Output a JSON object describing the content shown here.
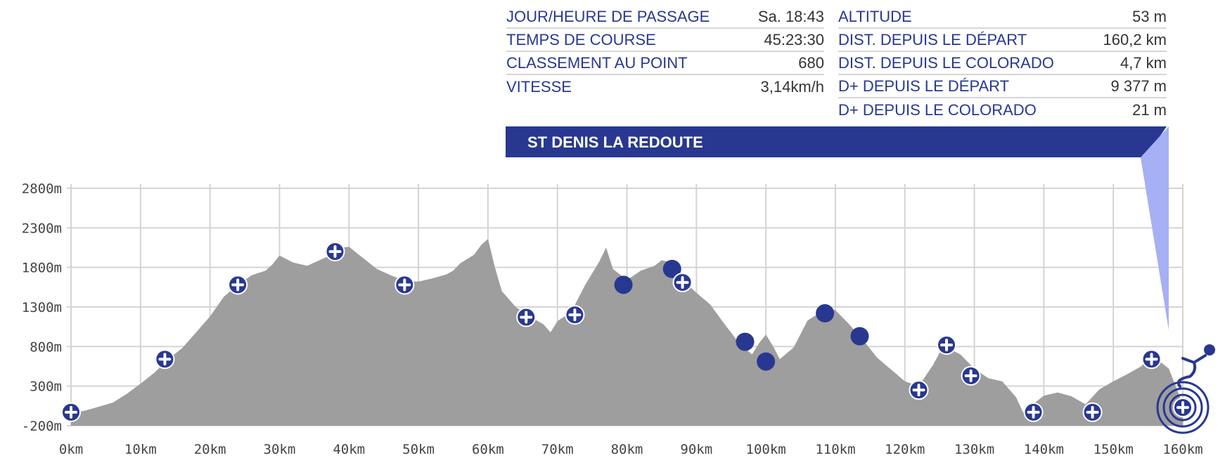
{
  "info": {
    "left": [
      {
        "label": "JOUR/HEURE DE PASSAGE",
        "value": "Sa. 18:43"
      },
      {
        "label": "TEMPS DE COURSE",
        "value": "45:23:30"
      },
      {
        "label": "CLASSEMENT AU POINT",
        "value": "680"
      },
      {
        "label": "VITESSE",
        "value": "3,14km/h"
      }
    ],
    "right": [
      {
        "label": "ALTITUDE",
        "value": "53 m"
      },
      {
        "label": "DIST. DEPUIS LE DÉPART",
        "value": "160,2 km"
      },
      {
        "label": "DIST. DEPUIS LE COLORADO",
        "value": "4,7 km"
      },
      {
        "label": "D+ DEPUIS LE DÉPART",
        "value": "9 377 m"
      },
      {
        "label": "D+ DEPUIS LE COLORADO",
        "value": "21 m"
      }
    ]
  },
  "banner": {
    "label": "ST DENIS LA REDOUTE",
    "color": "#283891",
    "pointer_color": "#a5b0f5"
  },
  "chart_data": {
    "type": "area",
    "title": "",
    "xlabel": "",
    "ylabel": "",
    "xlim": [
      0,
      160
    ],
    "ylim": [
      -200,
      2800
    ],
    "x_ticks": [
      "0km",
      "10km",
      "20km",
      "30km",
      "40km",
      "50km",
      "60km",
      "70km",
      "80km",
      "90km",
      "100km",
      "110km",
      "120km",
      "130km",
      "140km",
      "150km",
      "160km"
    ],
    "y_ticks": [
      "2800m",
      "2300m",
      "1800m",
      "1300m",
      "800m",
      "300m",
      "-200m"
    ],
    "grid": true,
    "fill_color": "#9e9e9e",
    "marker_color": "#283891",
    "series": [
      {
        "x": [
          0,
          2,
          4,
          6,
          8,
          10,
          12,
          14,
          16,
          18,
          20,
          22,
          24,
          26,
          28,
          29,
          30,
          32,
          34,
          35,
          36,
          38,
          39,
          40,
          42,
          44,
          46,
          48,
          50,
          52,
          54,
          55,
          56,
          58,
          59,
          60,
          61,
          62,
          64,
          66,
          68,
          69,
          70,
          72,
          74,
          76,
          77,
          78,
          80,
          82,
          84,
          85,
          86,
          87,
          88,
          90,
          92,
          94,
          96,
          98,
          99,
          100,
          101,
          102,
          104,
          106,
          108,
          109,
          110,
          112,
          114,
          116,
          118,
          120,
          122,
          124,
          125,
          126,
          128,
          130,
          132,
          134,
          136,
          137,
          138,
          140,
          142,
          144,
          146,
          148,
          150,
          152,
          154,
          155,
          156,
          158,
          160
        ],
        "y": [
          -40,
          -10,
          40,
          90,
          200,
          330,
          470,
          640,
          780,
          980,
          1180,
          1430,
          1580,
          1700,
          1760,
          1840,
          1950,
          1860,
          1820,
          1860,
          1900,
          1980,
          2050,
          2060,
          1920,
          1780,
          1700,
          1630,
          1620,
          1660,
          1710,
          1760,
          1850,
          1960,
          2080,
          2160,
          1800,
          1500,
          1300,
          1180,
          1080,
          980,
          1120,
          1240,
          1580,
          1870,
          2050,
          1780,
          1640,
          1760,
          1820,
          1890,
          1870,
          1760,
          1640,
          1480,
          1330,
          1090,
          860,
          700,
          840,
          950,
          810,
          640,
          790,
          1130,
          1240,
          1280,
          1260,
          1080,
          880,
          660,
          510,
          360,
          300,
          560,
          720,
          790,
          700,
          520,
          400,
          360,
          160,
          -30,
          40,
          180,
          220,
          170,
          70,
          260,
          360,
          450,
          550,
          640,
          660,
          520,
          70
        ]
      }
    ],
    "markers": [
      {
        "x": 0,
        "y": -30,
        "kind": "aid"
      },
      {
        "x": 13.5,
        "y": 640,
        "kind": "aid"
      },
      {
        "x": 24,
        "y": 1580,
        "kind": "aid"
      },
      {
        "x": 38,
        "y": 2000,
        "kind": "aid"
      },
      {
        "x": 48,
        "y": 1580,
        "kind": "aid"
      },
      {
        "x": 65.5,
        "y": 1170,
        "kind": "aid"
      },
      {
        "x": 72.5,
        "y": 1200,
        "kind": "aid"
      },
      {
        "x": 79.5,
        "y": 1580,
        "kind": "point"
      },
      {
        "x": 86.5,
        "y": 1780,
        "kind": "point"
      },
      {
        "x": 88,
        "y": 1610,
        "kind": "aid"
      },
      {
        "x": 97,
        "y": 860,
        "kind": "point"
      },
      {
        "x": 100,
        "y": 610,
        "kind": "point"
      },
      {
        "x": 108.5,
        "y": 1220,
        "kind": "point"
      },
      {
        "x": 113.5,
        "y": 930,
        "kind": "point"
      },
      {
        "x": 122,
        "y": 250,
        "kind": "aid"
      },
      {
        "x": 126,
        "y": 820,
        "kind": "aid"
      },
      {
        "x": 129.5,
        "y": 430,
        "kind": "aid"
      },
      {
        "x": 138.5,
        "y": -30,
        "kind": "aid"
      },
      {
        "x": 147,
        "y": -30,
        "kind": "aid"
      },
      {
        "x": 155.5,
        "y": 640,
        "kind": "aid"
      },
      {
        "x": 160,
        "y": 30,
        "kind": "finish"
      }
    ]
  }
}
